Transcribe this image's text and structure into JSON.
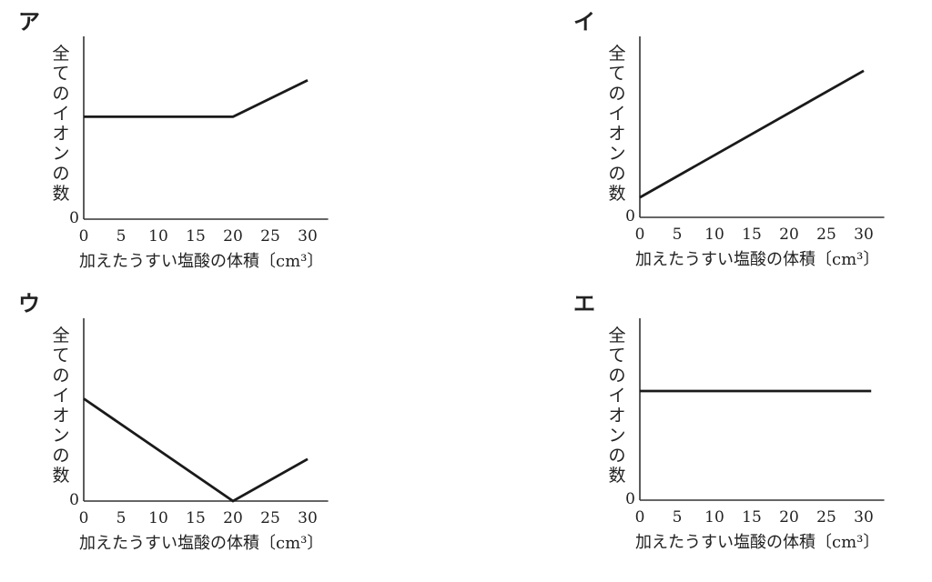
{
  "panels": [
    {
      "label": "ア",
      "ylabel": "全てのイオンの数",
      "xlabel": "加えたうすい塩酸の体積〔cm³〕",
      "zero_label": "0",
      "xticks": [
        "0",
        "5",
        "10",
        "15",
        "20",
        "25",
        "30"
      ]
    },
    {
      "label": "イ",
      "ylabel": "全てのイオンの数",
      "xlabel": "加えたうすい塩酸の体積〔cm³〕",
      "zero_label": "0",
      "xticks": [
        "0",
        "5",
        "10",
        "15",
        "20",
        "25",
        "30"
      ]
    },
    {
      "label": "ウ",
      "ylabel": "全てのイオンの数",
      "xlabel": "加えたうすい塩酸の体積〔cm³〕",
      "zero_label": "0",
      "xticks": [
        "0",
        "5",
        "10",
        "15",
        "20",
        "25",
        "30"
      ]
    },
    {
      "label": "エ",
      "ylabel": "全てのイオンの数",
      "xlabel": "加えたうすい塩酸の体積〔cm³〕",
      "zero_label": "0",
      "xticks": [
        "0",
        "5",
        "10",
        "15",
        "20",
        "25",
        "30"
      ]
    }
  ],
  "chart_data": [
    {
      "type": "line",
      "title": "ア",
      "xlabel": "加えたうすい塩酸の体積〔cm³〕",
      "ylabel": "全てのイオンの数",
      "xlim": [
        0,
        32
      ],
      "ylim": [
        0,
        1
      ],
      "series": [
        {
          "x": [
            0,
            20,
            30
          ],
          "y": [
            0.56,
            0.56,
            0.76
          ]
        }
      ]
    },
    {
      "type": "line",
      "title": "イ",
      "xlabel": "加えたうすい塩酸の体積〔cm³〕",
      "ylabel": "全てのイオンの数",
      "xlim": [
        0,
        32
      ],
      "ylim": [
        0,
        1
      ],
      "series": [
        {
          "x": [
            0,
            30
          ],
          "y": [
            0.11,
            0.81
          ]
        }
      ]
    },
    {
      "type": "line",
      "title": "ウ",
      "xlabel": "加えたうすい塩酸の体積〔cm³〕",
      "ylabel": "全てのイオンの数",
      "xlim": [
        0,
        32
      ],
      "ylim": [
        0,
        1
      ],
      "series": [
        {
          "x": [
            0,
            20,
            30
          ],
          "y": [
            0.56,
            0.0,
            0.23
          ]
        }
      ]
    },
    {
      "type": "line",
      "title": "エ",
      "xlabel": "加えたうすい塩酸の体積〔cm³〕",
      "ylabel": "全てのイオンの数",
      "xlim": [
        0,
        32
      ],
      "ylim": [
        0,
        1
      ],
      "series": [
        {
          "x": [
            0,
            31
          ],
          "y": [
            0.6,
            0.6
          ]
        }
      ]
    }
  ]
}
